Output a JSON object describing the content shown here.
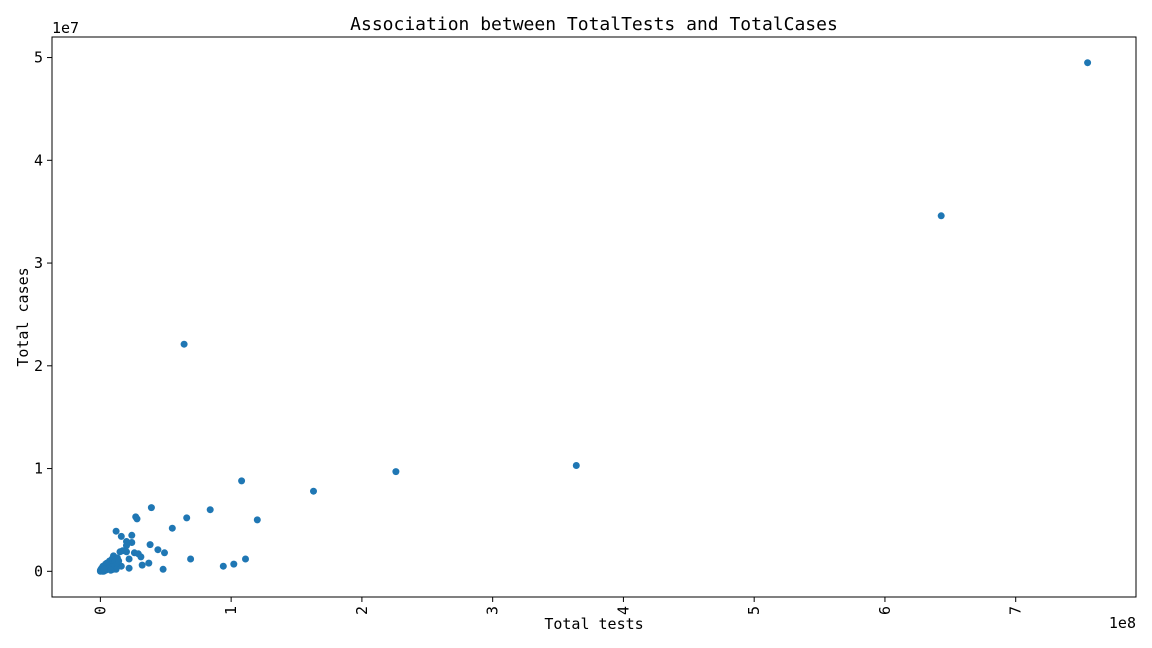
{
  "chart_data": {
    "type": "scatter",
    "title": "Association between TotalTests and TotalCases",
    "xlabel": "Total tests",
    "ylabel": "Total cases",
    "x_multiplier_label": "1e8",
    "y_multiplier_label": "1e7",
    "x_scale": 100000000,
    "y_scale": 10000000,
    "xlim": [
      -0.37,
      7.92
    ],
    "ylim": [
      -0.25,
      5.2
    ],
    "xticks": [
      0,
      1,
      2,
      3,
      4,
      5,
      6,
      7
    ],
    "yticks": [
      0,
      1,
      2,
      3,
      4,
      5
    ],
    "grid": false,
    "color": "#1f77b4",
    "points": [
      [
        7.55,
        4.95
      ],
      [
        6.43,
        3.46
      ],
      [
        0.64,
        2.21
      ],
      [
        3.64,
        1.03
      ],
      [
        2.26,
        0.97
      ],
      [
        1.63,
        0.78
      ],
      [
        1.08,
        0.88
      ],
      [
        0.84,
        0.6
      ],
      [
        1.2,
        0.5
      ],
      [
        0.66,
        0.52
      ],
      [
        0.55,
        0.42
      ],
      [
        0.39,
        0.62
      ],
      [
        0.27,
        0.53
      ],
      [
        0.28,
        0.51
      ],
      [
        0.12,
        0.39
      ],
      [
        0.16,
        0.34
      ],
      [
        0.24,
        0.35
      ],
      [
        0.24,
        0.28
      ],
      [
        0.2,
        0.29
      ],
      [
        0.2,
        0.25
      ],
      [
        0.38,
        0.26
      ],
      [
        0.44,
        0.21
      ],
      [
        0.49,
        0.18
      ],
      [
        0.17,
        0.2
      ],
      [
        0.15,
        0.19
      ],
      [
        0.2,
        0.19
      ],
      [
        0.26,
        0.18
      ],
      [
        0.29,
        0.17
      ],
      [
        0.31,
        0.14
      ],
      [
        0.22,
        0.12
      ],
      [
        0.1,
        0.15
      ],
      [
        0.13,
        0.13
      ],
      [
        0.37,
        0.08
      ],
      [
        0.32,
        0.06
      ],
      [
        0.69,
        0.12
      ],
      [
        1.11,
        0.12
      ],
      [
        1.02,
        0.07
      ],
      [
        0.94,
        0.05
      ],
      [
        0.48,
        0.02
      ],
      [
        0.22,
        0.03
      ],
      [
        0.16,
        0.05
      ],
      [
        0.09,
        0.12
      ],
      [
        0.07,
        0.1
      ],
      [
        0.05,
        0.08
      ],
      [
        0.08,
        0.06
      ],
      [
        0.11,
        0.09
      ],
      [
        0.12,
        0.06
      ],
      [
        0.1,
        0.02
      ],
      [
        0.06,
        0.05
      ],
      [
        0.04,
        0.07
      ],
      [
        0.05,
        0.03
      ],
      [
        0.03,
        0.04
      ],
      [
        0.02,
        0.05
      ],
      [
        0.03,
        0.01
      ],
      [
        0.02,
        0.02
      ],
      [
        0.01,
        0.03
      ],
      [
        0.01,
        0.01
      ],
      [
        0.005,
        0.02
      ],
      [
        0.005,
        0.005
      ],
      [
        0.0,
        0.01
      ],
      [
        0.0,
        0.0
      ],
      [
        0.015,
        0.0
      ],
      [
        0.025,
        0.0
      ],
      [
        0.04,
        0.01
      ],
      [
        0.07,
        0.03
      ],
      [
        0.09,
        0.04
      ],
      [
        0.14,
        0.1
      ],
      [
        0.12,
        0.02
      ],
      [
        0.08,
        0.01
      ],
      [
        0.03,
        0.02
      ]
    ]
  }
}
